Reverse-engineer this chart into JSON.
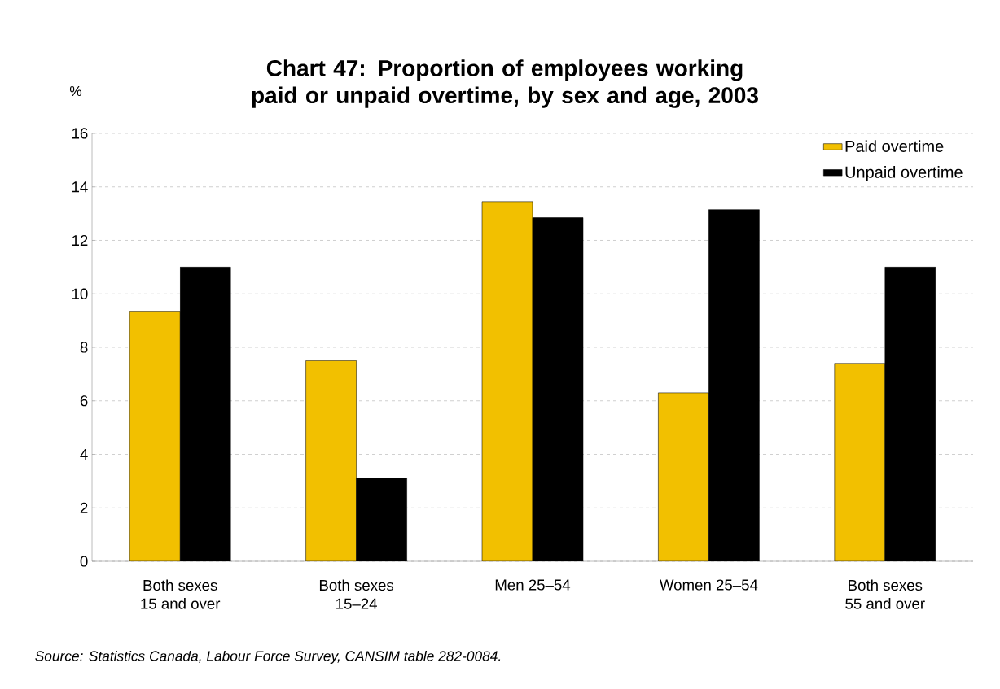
{
  "chart_data": {
    "type": "bar",
    "title": "Chart 47: Proportion of employees working paid or unpaid overtime, by sex and age, 2003",
    "ylabel": "%",
    "categories": [
      "Both sexes\n15 and over",
      "Both sexes\n15–24",
      "Men 25–54",
      "Women 25–54",
      "Both sexes\n55 and over"
    ],
    "series": [
      {
        "name": "Paid overtime",
        "color": "#f2c000",
        "values": [
          9.35,
          7.5,
          13.45,
          6.3,
          7.4
        ]
      },
      {
        "name": "Unpaid overtime",
        "color": "#000000",
        "values": [
          11.0,
          3.1,
          12.85,
          13.15,
          11.0
        ]
      }
    ],
    "ylim": [
      0,
      16
    ],
    "yticks": [
      0,
      2,
      4,
      6,
      8,
      10,
      12,
      14,
      16
    ],
    "grid": "y",
    "legend": "top right",
    "annotations": [
      "*Source: Statistics Canada, Labour Force Survey, CANSIM table 282-0084.*"
    ]
  }
}
